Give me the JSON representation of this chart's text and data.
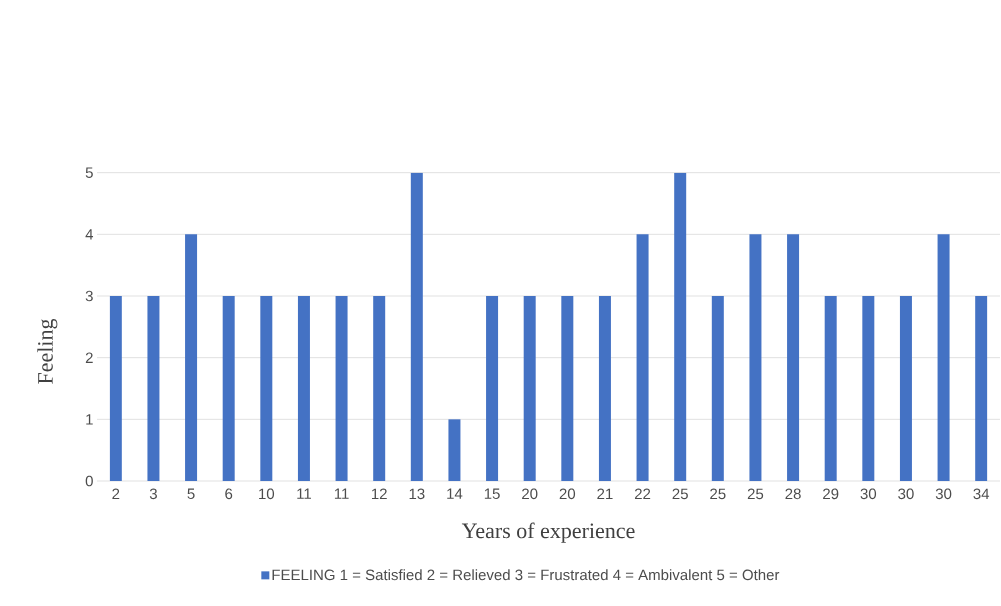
{
  "chart_data": {
    "type": "bar",
    "xlabel": "Years of experience",
    "ylabel": "Feeling",
    "categories": [
      "2",
      "3",
      "5",
      "6",
      "10",
      "11",
      "11",
      "12",
      "13",
      "14",
      "15",
      "20",
      "20",
      "21",
      "22",
      "25",
      "25",
      "25",
      "28",
      "29",
      "30",
      "30",
      "30",
      "34"
    ],
    "series": [
      {
        "name": "FEELING 1 = Satisfied  2 = Relieved  3 = Frustrated  4 = Ambivalent  5 = Other",
        "color": "#4472c4",
        "values": [
          3,
          3,
          4,
          3,
          3,
          3,
          3,
          3,
          5,
          1,
          3,
          3,
          3,
          3,
          4,
          5,
          3,
          4,
          4,
          3,
          3,
          3,
          4,
          3
        ]
      }
    ],
    "ylim": [
      0,
      5
    ],
    "yticks": [
      0,
      1,
      2,
      3,
      4,
      5
    ],
    "grid": "y",
    "legend": "bottom"
  }
}
